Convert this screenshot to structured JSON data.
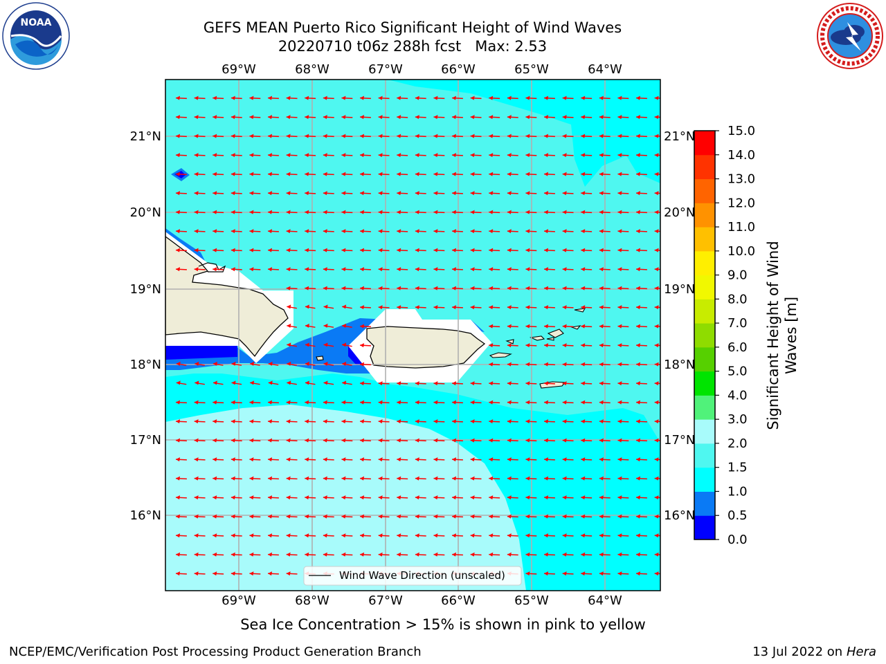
{
  "title": "GEFS MEAN Puerto Rico Significant Height of Wind Waves",
  "subtitle": "20220710 t06z 288h fcst   Max: 2.53",
  "note": "Sea Ice Concentration > 15% is shown in pink to yellow",
  "footer": {
    "left": "NCEP/EMC/Verification Post Processing Product Generation Branch",
    "date": "13 Jul 2022 on",
    "machine": "Hera"
  },
  "logos": {
    "left": "noaa-logo",
    "right": "nws-logo"
  },
  "map": {
    "lon_ticks": [
      "69°W",
      "68°W",
      "67°W",
      "66°W",
      "65°W",
      "64°W"
    ],
    "lat_ticks": [
      "21°N",
      "20°N",
      "19°N",
      "18°N",
      "17°N",
      "16°N"
    ],
    "legend_label": "Wind Wave Direction (unscaled)",
    "arrow_color": "#ff0000",
    "land_color": "#efedd8"
  },
  "colorbar": {
    "label": "Significant Height of Wind Waves [m]",
    "label_line1": "Significant Height of Wind",
    "label_line2": "Waves [m]",
    "levels": [
      "0.0",
      "0.5",
      "1.0",
      "1.5",
      "2.0",
      "3.0",
      "4.0",
      "5.0",
      "6.0",
      "7.0",
      "8.0",
      "9.0",
      "10.0",
      "11.0",
      "12.0",
      "13.0",
      "14.0",
      "15.0"
    ],
    "colors": [
      "#0000ff",
      "#0a7af5",
      "#00ffff",
      "#4ff7f0",
      "#a8fbfb",
      "#50f27a",
      "#00e400",
      "#56d000",
      "#8fdc00",
      "#c8ec00",
      "#f1f800",
      "#ffef00",
      "#ffc000",
      "#ff9200",
      "#ff6400",
      "#ff3300",
      "#ff0000"
    ]
  }
}
